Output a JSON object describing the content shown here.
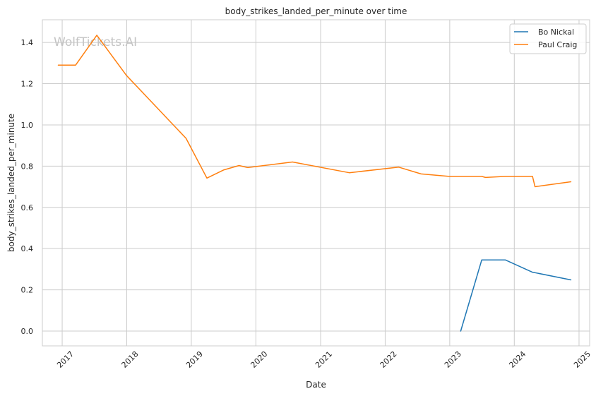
{
  "chart_data": {
    "type": "line",
    "title": "body_strikes_landed_per_minute over time",
    "xlabel": "Date",
    "ylabel": "body_strikes_landed_per_minute",
    "watermark": "WolfTickets.AI",
    "xlim": [
      "2016-09-11",
      "2025-03-02"
    ],
    "ylim": [
      -0.072,
      1.51
    ],
    "x_ticks": [
      "2017",
      "2018",
      "2019",
      "2020",
      "2021",
      "2022",
      "2023",
      "2024",
      "2025"
    ],
    "y_ticks": [
      0.0,
      0.2,
      0.4,
      0.6,
      0.8,
      1.0,
      1.2,
      1.4
    ],
    "grid": true,
    "legend_position": "top-right",
    "series": [
      {
        "name": "Bo Nickal",
        "color": "#1f77b4",
        "points": [
          {
            "x": "2023-03-04",
            "y": 0.0
          },
          {
            "x": "2023-07-01",
            "y": 0.345
          },
          {
            "x": "2023-11-11",
            "y": 0.345
          },
          {
            "x": "2024-04-13",
            "y": 0.285
          },
          {
            "x": "2024-04-27",
            "y": 0.283
          },
          {
            "x": "2024-11-16",
            "y": 0.248
          }
        ]
      },
      {
        "name": "Paul Craig",
        "color": "#ff7f0e",
        "points": [
          {
            "x": "2016-12-10",
            "y": 1.29
          },
          {
            "x": "2017-03-18",
            "y": 1.29
          },
          {
            "x": "2017-07-16",
            "y": 1.435
          },
          {
            "x": "2017-12-30",
            "y": 1.24
          },
          {
            "x": "2018-12-02",
            "y": 0.935
          },
          {
            "x": "2019-03-30",
            "y": 0.742
          },
          {
            "x": "2019-07-05",
            "y": 0.782
          },
          {
            "x": "2019-09-28",
            "y": 0.803
          },
          {
            "x": "2019-11-16",
            "y": 0.793
          },
          {
            "x": "2020-07-26",
            "y": 0.82
          },
          {
            "x": "2021-06-12",
            "y": 0.768
          },
          {
            "x": "2022-03-19",
            "y": 0.795
          },
          {
            "x": "2022-07-23",
            "y": 0.762
          },
          {
            "x": "2022-12-31",
            "y": 0.75
          },
          {
            "x": "2023-07-01",
            "y": 0.75
          },
          {
            "x": "2023-07-22",
            "y": 0.745
          },
          {
            "x": "2023-11-11",
            "y": 0.75
          },
          {
            "x": "2024-04-13",
            "y": 0.75
          },
          {
            "x": "2024-04-27",
            "y": 0.7
          },
          {
            "x": "2024-11-16",
            "y": 0.724
          }
        ]
      }
    ]
  }
}
